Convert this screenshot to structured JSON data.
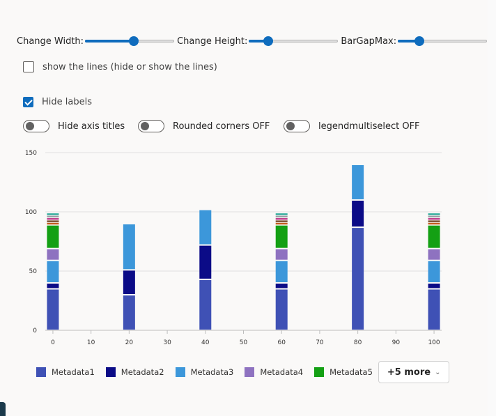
{
  "controls": {
    "width_label": "Change Width:",
    "width_value": 0.55,
    "height_label": "Change Height:",
    "height_value": 0.22,
    "bargap_label": "BarGapMax:",
    "bargap_value": 0.24,
    "show_lines_label": "show the lines (hide or show the lines)",
    "show_lines_checked": false,
    "hide_labels_label": "Hide labels",
    "hide_labels_checked": true,
    "hide_axis_titles_label": "Hide axis titles",
    "rounded_corners_label": "Rounded corners OFF",
    "legend_multiselect_label": "legendmultiselect OFF"
  },
  "legend": {
    "items": [
      "Metadata1",
      "Metadata2",
      "Metadata3",
      "Metadata4",
      "Metadata5"
    ],
    "more_label": "+5 more"
  },
  "colors": {
    "accent": "#0f6cbd",
    "series": [
      "#3f51b5",
      "#0b0b87",
      "#3c97da",
      "#8e72c0",
      "#14a014",
      "#c25e1f",
      "#7a4a2a",
      "#c2418e",
      "#9aa0a6",
      "#2eaa9a"
    ]
  },
  "chart_data": {
    "type": "bar",
    "stacked": true,
    "x_ticks": [
      0,
      10,
      20,
      30,
      40,
      50,
      60,
      70,
      80,
      90,
      100
    ],
    "y_ticks": [
      0,
      50,
      100,
      150
    ],
    "xlim": [
      -2,
      102
    ],
    "ylim": [
      0,
      150
    ],
    "grid": true,
    "legend_position": "bottom",
    "x": [
      0,
      20,
      40,
      60,
      80,
      100
    ],
    "series": [
      {
        "name": "Metadata1",
        "values": [
          35,
          30,
          43,
          35,
          87,
          35
        ]
      },
      {
        "name": "Metadata2",
        "values": [
          5,
          21,
          29,
          5,
          23,
          5
        ]
      },
      {
        "name": "Metadata3",
        "values": [
          19,
          39,
          30,
          19,
          30,
          19
        ]
      },
      {
        "name": "Metadata4",
        "values": [
          10,
          0,
          0,
          10,
          0,
          10
        ]
      },
      {
        "name": "Metadata5",
        "values": [
          20,
          0,
          0,
          20,
          0,
          20
        ]
      },
      {
        "values": [
          2,
          0,
          0,
          2,
          0,
          2
        ]
      },
      {
        "values": [
          2,
          0,
          0,
          2,
          0,
          2
        ]
      },
      {
        "values": [
          2,
          0,
          0,
          2,
          0,
          2
        ]
      },
      {
        "values": [
          2,
          0,
          0,
          2,
          0,
          2
        ]
      },
      {
        "values": [
          2,
          0,
          0,
          2,
          0,
          2
        ]
      }
    ]
  }
}
